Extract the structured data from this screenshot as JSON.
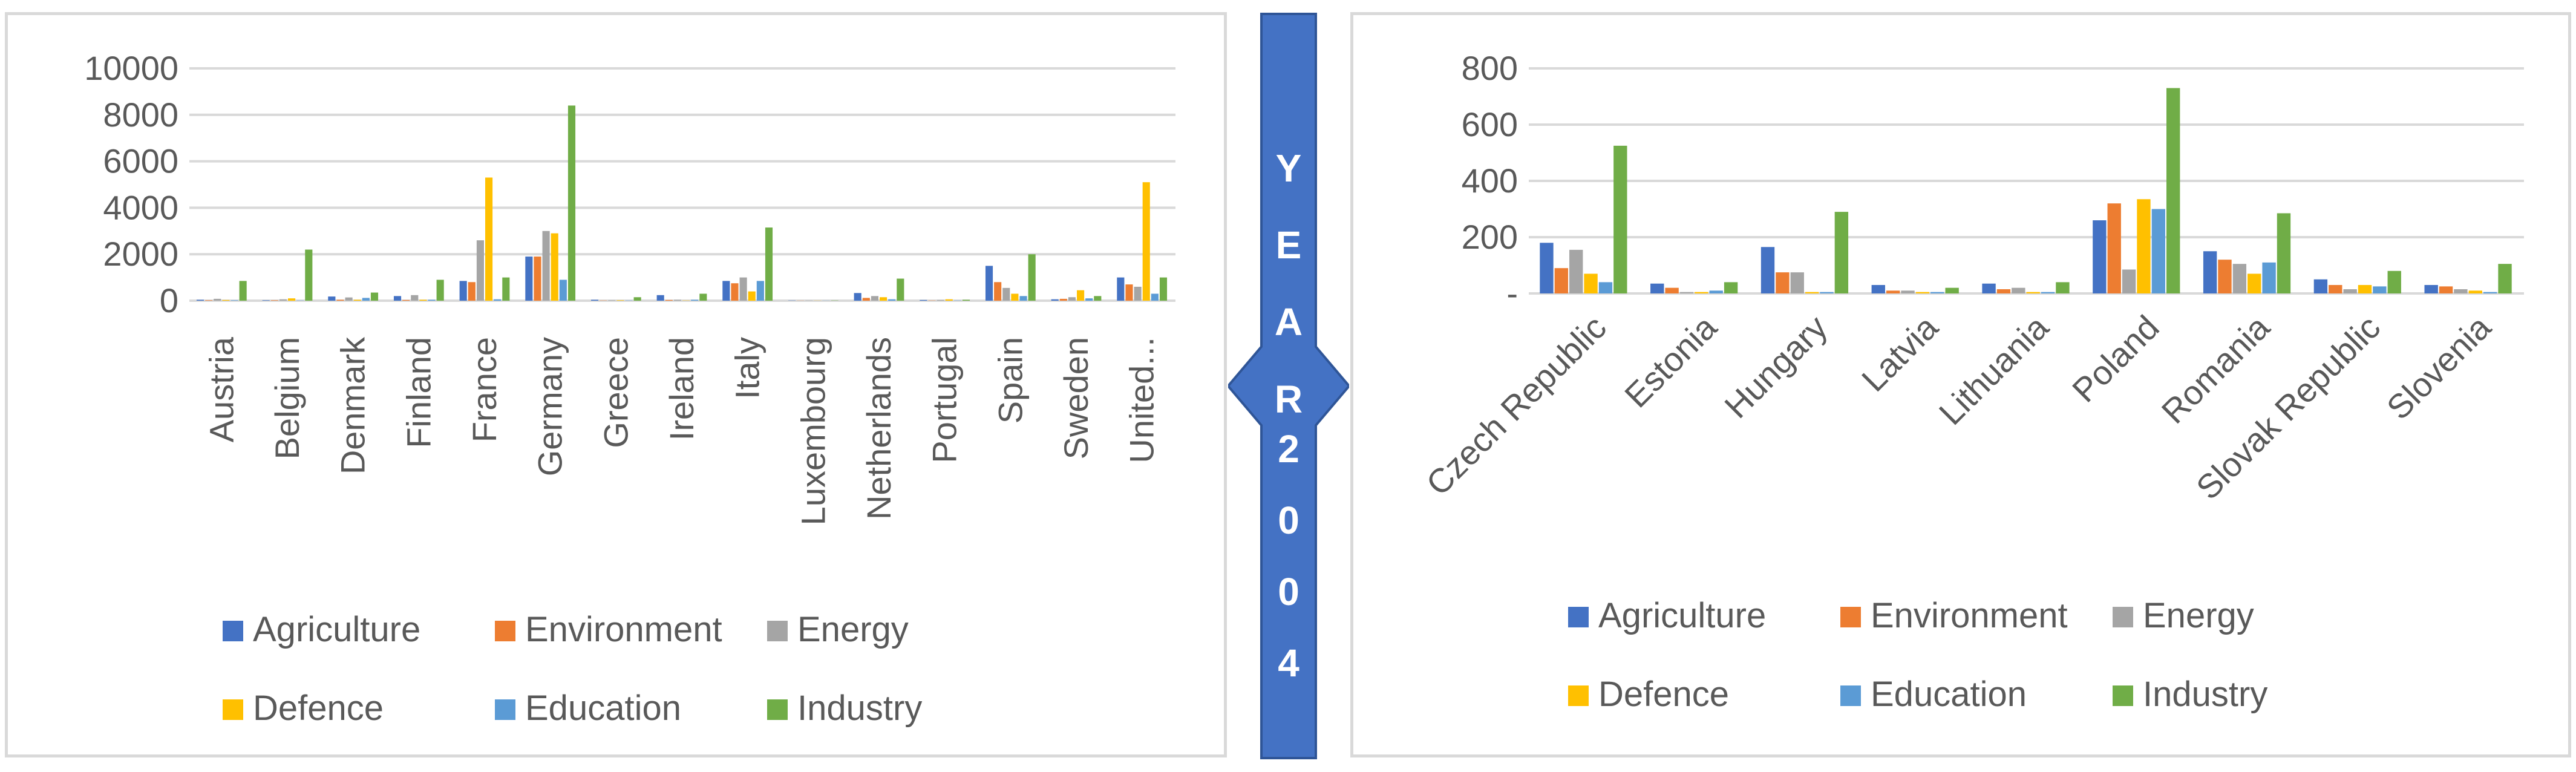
{
  "banner": {
    "chars": [
      "Y",
      "E",
      "A",
      "R",
      "2",
      "0",
      "0",
      "4"
    ]
  },
  "colors": {
    "Agriculture": "#4472c4",
    "Environment": "#ed7d31",
    "Energy": "#a5a5a5",
    "Defence": "#ffc000",
    "Education": "#5b9bd5",
    "Industry": "#70ad47",
    "gridline": "#d9d9d9",
    "banner": "#4472c4"
  },
  "chart_data": [
    {
      "type": "bar",
      "title": "",
      "xlabel": "",
      "ylabel": "",
      "ylim": [
        0,
        10000
      ],
      "yticks": [
        "0",
        "2000",
        "4000",
        "6000",
        "8000",
        "10000"
      ],
      "grid": true,
      "legend_position": "bottom",
      "categories": [
        "Austria",
        "Belgium",
        "Denmark",
        "Finland",
        "France",
        "Germany",
        "Greece",
        "Ireland",
        "Italy",
        "Luxembourg",
        "Netherlands",
        "Portugal",
        "Spain",
        "Sweden",
        "United..."
      ],
      "series": [
        {
          "name": "Agriculture",
          "values": [
            40,
            20,
            180,
            200,
            850,
            1900,
            40,
            240,
            850,
            10,
            330,
            30,
            1500,
            60,
            1000
          ]
        },
        {
          "name": "Environment",
          "values": [
            20,
            20,
            40,
            30,
            800,
            1900,
            10,
            30,
            750,
            5,
            120,
            10,
            800,
            80,
            700
          ]
        },
        {
          "name": "Energy",
          "values": [
            80,
            60,
            140,
            240,
            2600,
            3000,
            20,
            40,
            1000,
            10,
            200,
            30,
            550,
            150,
            600
          ]
        },
        {
          "name": "Defence",
          "values": [
            30,
            100,
            40,
            40,
            5300,
            2900,
            20,
            10,
            400,
            5,
            150,
            60,
            300,
            450,
            5100
          ]
        },
        {
          "name": "Education",
          "values": [
            20,
            10,
            120,
            40,
            60,
            900,
            10,
            40,
            850,
            5,
            60,
            10,
            200,
            100,
            300
          ]
        },
        {
          "name": "Industry",
          "values": [
            850,
            2200,
            350,
            900,
            1000,
            8400,
            150,
            300,
            3150,
            10,
            950,
            40,
            2000,
            200,
            1000
          ]
        }
      ]
    },
    {
      "type": "bar",
      "title": "",
      "xlabel": "",
      "ylabel": "",
      "ylim": [
        0,
        800
      ],
      "yticks": [
        "-",
        "200",
        "400",
        "600",
        "800"
      ],
      "grid": true,
      "legend_position": "bottom",
      "categories": [
        "Czech Republic",
        "Estonia",
        "Hungary",
        "Latvia",
        "Lithuania",
        "Poland",
        "Romania",
        "Slovak Republic",
        "Slovenia"
      ],
      "series": [
        {
          "name": "Agriculture",
          "values": [
            180,
            35,
            165,
            30,
            35,
            260,
            150,
            50,
            30
          ]
        },
        {
          "name": "Environment",
          "values": [
            90,
            20,
            75,
            10,
            15,
            320,
            120,
            30,
            25
          ]
        },
        {
          "name": "Energy",
          "values": [
            155,
            5,
            75,
            10,
            20,
            85,
            105,
            15,
            15
          ]
        },
        {
          "name": "Defence",
          "values": [
            70,
            5,
            5,
            5,
            5,
            335,
            70,
            30,
            10
          ]
        },
        {
          "name": "Education",
          "values": [
            40,
            10,
            5,
            5,
            5,
            300,
            110,
            25,
            5
          ]
        },
        {
          "name": "Industry",
          "values": [
            525,
            40,
            290,
            20,
            40,
            730,
            285,
            80,
            105
          ]
        }
      ]
    }
  ]
}
